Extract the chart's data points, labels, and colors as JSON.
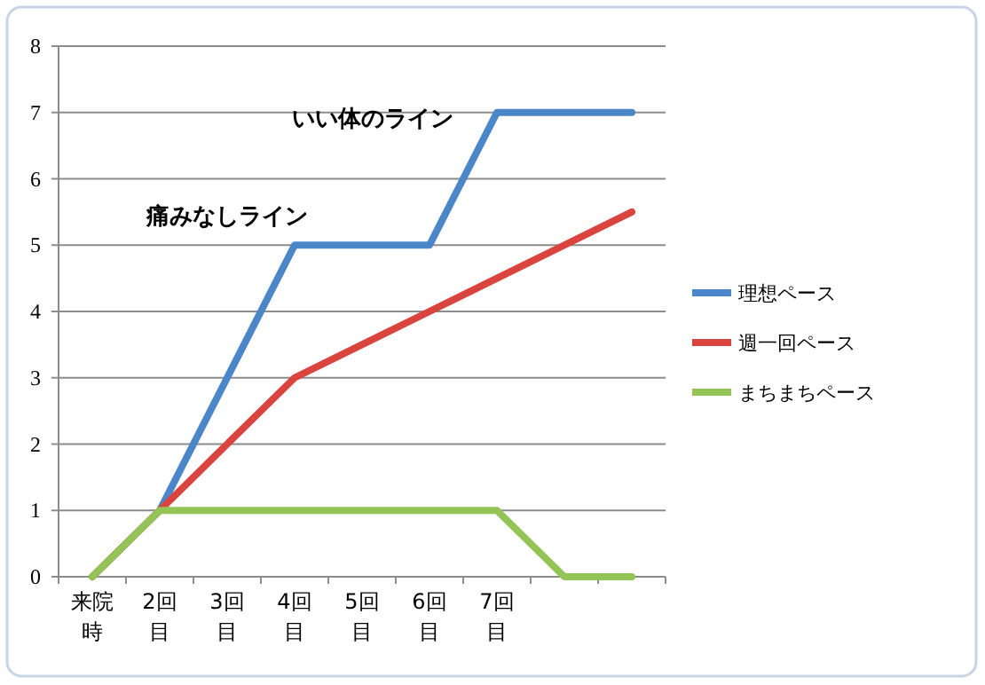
{
  "chart_data": {
    "type": "line",
    "categories": [
      "来院時",
      "2回目",
      "3回目",
      "4回目",
      "5回目",
      "6回目",
      "7回目",
      null,
      null
    ],
    "series": [
      {
        "name": "理想ペース",
        "color": "#4a86c8",
        "values": [
          0,
          1,
          3,
          5,
          5,
          5,
          7,
          7,
          7
        ]
      },
      {
        "name": "週一回ペース",
        "color": "#d9443e",
        "values": [
          0,
          1,
          2,
          3,
          3.5,
          4,
          4.5,
          5,
          5.5
        ]
      },
      {
        "name": "まちまちペース",
        "color": "#94c356",
        "values": [
          0,
          1,
          1,
          1,
          1,
          1,
          1,
          0,
          0
        ]
      }
    ],
    "ylim": [
      0,
      8
    ],
    "yticks": [
      0,
      1,
      2,
      3,
      4,
      5,
      6,
      7,
      8
    ],
    "grid": "y",
    "legend": "right",
    "annotations": [
      "いい体のライン",
      "痛みなしライン"
    ]
  }
}
